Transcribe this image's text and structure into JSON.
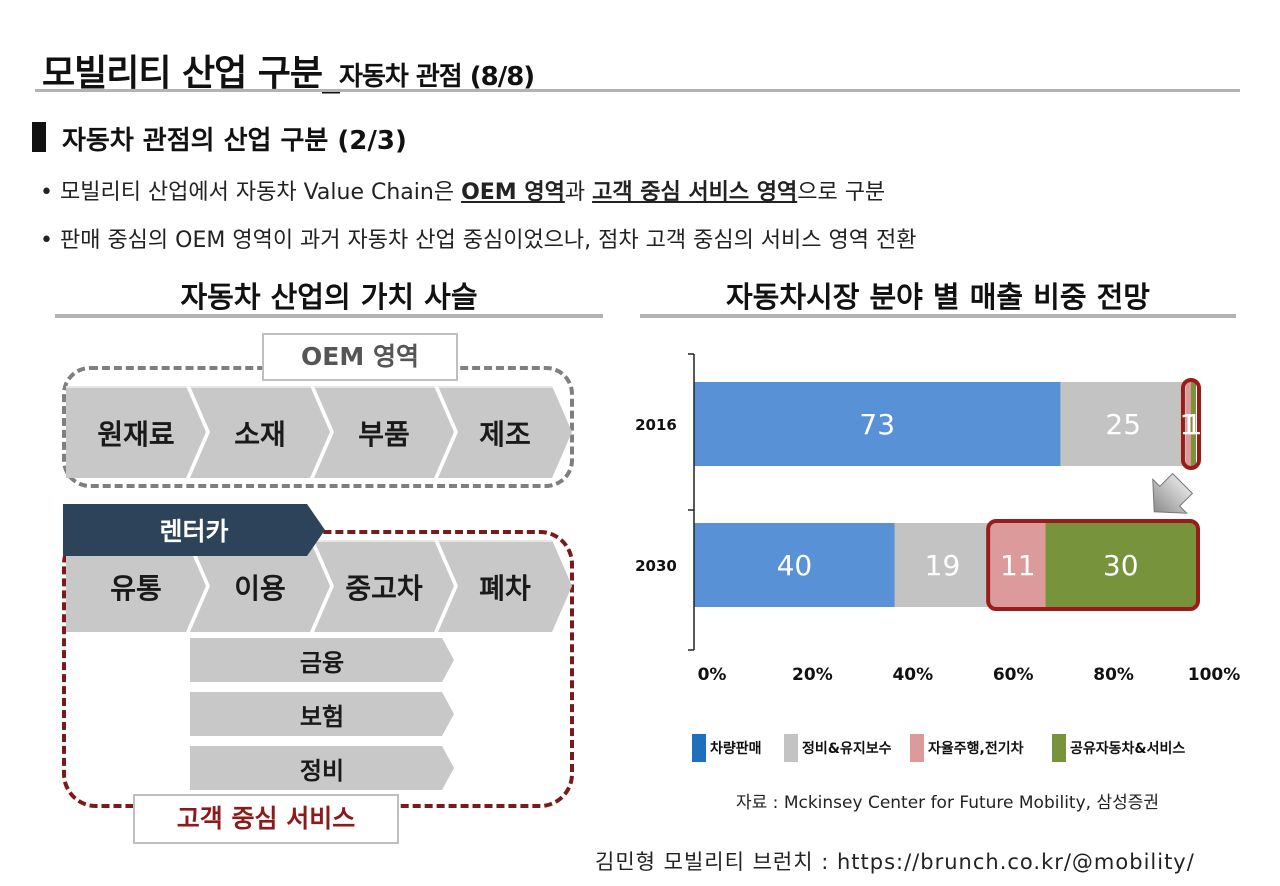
{
  "title": {
    "main": "모빌리티 산업 구분_",
    "sub": "자동차 관점 (8/8)"
  },
  "section_title": "자동차 관점의 산업 구분 (2/3)",
  "bullets": [
    {
      "prefix": "• 모빌리티 산업에서 자동차 Value Chain은  ",
      "em1": "OEM 영역",
      "mid": "과 ",
      "em2": "고객 중심 서비스 영역",
      "suffix": "으로 구분"
    },
    {
      "text": "• 판매 중심의 OEM 영역이 과거 자동차 산업 중심이었으나, 점차 고객 중심의 서비스 영역 전환"
    }
  ],
  "value_chain": {
    "title": "자동차 산업의 가치 사슬",
    "oem_label": "OEM 영역",
    "oem_steps": [
      "원재료",
      "소재",
      "부품",
      "제조"
    ],
    "rental_label": "렌터카",
    "customer_steps": [
      "유통",
      "이용",
      "중고차",
      "폐차"
    ],
    "sub_services": [
      "금융",
      "보험",
      "정비"
    ],
    "customer_label": "고객 중심 서비스"
  },
  "chart_data": {
    "type": "bar",
    "orientation": "horizontal",
    "stacked": true,
    "title": "자동차시장 분야 별 매출 비중 전망",
    "categories": [
      "2016",
      "2030"
    ],
    "series": [
      {
        "name": "차량판매",
        "color": "#5891d6",
        "values": [
          73,
          40
        ]
      },
      {
        "name": "정비&유지보수",
        "color": "#c3c3c3",
        "values": [
          25,
          19
        ]
      },
      {
        "name": "자율주행,전기차",
        "color": "#dd9a9a",
        "values": [
          1,
          11
        ]
      },
      {
        "name": "공유자동차&서비스",
        "color": "#77933c",
        "values": [
          1,
          30
        ]
      }
    ],
    "value_labels": [
      [
        "73",
        "25",
        "1",
        "1"
      ],
      [
        "40",
        "19",
        "11",
        "30"
      ]
    ],
    "x_ticks": [
      "0%",
      "20%",
      "40%",
      "60%",
      "80%",
      "100%"
    ],
    "xlim": [
      0,
      100
    ],
    "legend": "bottom",
    "highlight_color": "#9b1b1b"
  },
  "source": "자료 : Mckinsey Center for Future Mobility, 삼성증권",
  "footer": "김민형 모빌리티 브런치 : https://brunch.co.kr/@mobility/"
}
